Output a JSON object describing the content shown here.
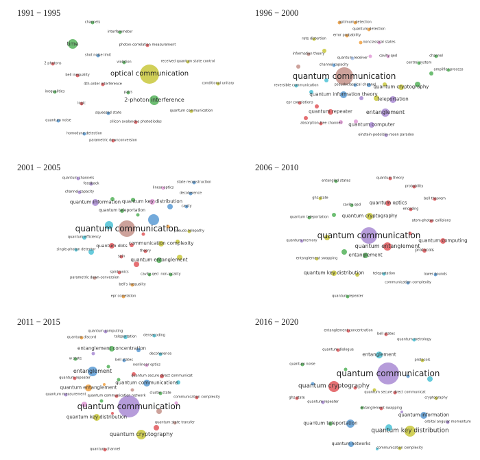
{
  "colors": {
    "red": "#e0575b",
    "green": "#55b35a",
    "blue": "#5b9bd5",
    "yellow": "#c9c83c",
    "purple": "#a98bd4",
    "brown": "#c4928a",
    "cyan": "#4cc2d6",
    "orange": "#f0a040",
    "pink": "#e09ad6",
    "lightblue": "#a9c6ee"
  },
  "panels": [
    {
      "title": "1991 − 1995",
      "nodes": [
        {
          "label": "channels",
          "color": "green"
        },
        {
          "label": "interferometer",
          "color": "green"
        },
        {
          "label": "time",
          "color": "green"
        },
        {
          "label": "photon-correlation measurement",
          "color": "red"
        },
        {
          "label": "shot noise limit",
          "color": "blue"
        },
        {
          "label": "violation",
          "color": "green"
        },
        {
          "label": "2 photons",
          "color": "red"
        },
        {
          "label": "received quantum state control",
          "color": "yellow"
        },
        {
          "label": "bell inequality",
          "color": "red"
        },
        {
          "label": "optical communication",
          "color": "yellow"
        },
        {
          "label": "4th-order interference",
          "color": "red"
        },
        {
          "label": "conditional unitary",
          "color": "yellow"
        },
        {
          "label": "inequalities",
          "color": "green"
        },
        {
          "label": "pairs",
          "color": "green"
        },
        {
          "label": "2-photon interference",
          "color": "green"
        },
        {
          "label": "logic",
          "color": "red"
        },
        {
          "label": "squeezed state",
          "color": "blue"
        },
        {
          "label": "quantum communication",
          "color": "yellow"
        },
        {
          "label": "quantum noise",
          "color": "blue"
        },
        {
          "label": "silicon avalanche photodiodes",
          "color": "red"
        },
        {
          "label": "homodyne detection",
          "color": "blue"
        },
        {
          "label": "parametric downconversion",
          "color": "red"
        }
      ]
    },
    {
      "title": "1996 − 2000",
      "nodes": [
        {
          "label": "optimum detection",
          "color": "orange"
        },
        {
          "label": "quantum detection",
          "color": "orange"
        },
        {
          "label": "error probability",
          "color": "orange"
        },
        {
          "label": "rate distortion",
          "color": "yellow"
        },
        {
          "label": "nonclassical states",
          "color": "pink"
        },
        {
          "label": "information theory",
          "color": "brown"
        },
        {
          "label": "quantum receiver",
          "color": "lightblue"
        },
        {
          "label": "cavity qed",
          "color": "pink"
        },
        {
          "label": "channel",
          "color": "green"
        },
        {
          "label": "control system",
          "color": "green"
        },
        {
          "label": "channel capacity",
          "color": "blue"
        },
        {
          "label": "amplifier process",
          "color": "green"
        },
        {
          "label": "quantum communication",
          "color": "brown"
        },
        {
          "label": "reversible communication",
          "color": "cyan"
        },
        {
          "label": "pseudoclassical channel",
          "color": "blue"
        },
        {
          "label": "quantum cryptography",
          "color": "yellow"
        },
        {
          "label": "quantum information theory",
          "color": "blue"
        },
        {
          "label": "teleportation",
          "color": "purple"
        },
        {
          "label": "epr correlations",
          "color": "red"
        },
        {
          "label": "quantum repeater",
          "color": "red"
        },
        {
          "label": "entanglement",
          "color": "purple"
        },
        {
          "label": "absorption-free channel",
          "color": "red"
        },
        {
          "label": "quantum computer",
          "color": "purple"
        },
        {
          "label": "einstein-podolsky-rosen paradox",
          "color": "purple"
        }
      ]
    },
    {
      "title": "2001 − 2005",
      "nodes": [
        {
          "label": "quantum channels",
          "color": "purple"
        },
        {
          "label": "feedback",
          "color": "purple"
        },
        {
          "label": "channel capacity",
          "color": "purple"
        },
        {
          "label": "state reconstruction",
          "color": "blue"
        },
        {
          "label": "linear optics",
          "color": "pink"
        },
        {
          "label": "decoherence",
          "color": "blue"
        },
        {
          "label": "quantum information",
          "color": "purple"
        },
        {
          "label": "quantum key distribution",
          "color": "pink"
        },
        {
          "label": "cavity",
          "color": "blue"
        },
        {
          "label": "quantum teleportation",
          "color": "green"
        },
        {
          "label": "quantum communication",
          "color": "brown"
        },
        {
          "label": "pseudo-telepathy",
          "color": "yellow"
        },
        {
          "label": "quantum efficiency",
          "color": "cyan"
        },
        {
          "label": "quantum dots",
          "color": "red"
        },
        {
          "label": "communication complexity",
          "color": "yellow"
        },
        {
          "label": "single-photon detector",
          "color": "cyan"
        },
        {
          "label": "theory",
          "color": "red"
        },
        {
          "label": "spin",
          "color": "red"
        },
        {
          "label": "quantum entanglement",
          "color": "green"
        },
        {
          "label": "spintronics",
          "color": "red"
        },
        {
          "label": "cavity qed",
          "color": "green"
        },
        {
          "label": "non-locality",
          "color": "green"
        },
        {
          "label": "parametric down-conversion",
          "color": "brown"
        },
        {
          "label": "bell's inequality",
          "color": "orange"
        },
        {
          "label": "epr correlation",
          "color": "orange"
        }
      ]
    },
    {
      "title": "2006 − 2010",
      "nodes": [
        {
          "label": "quantum theory",
          "color": "red"
        },
        {
          "label": "entangled states",
          "color": "green"
        },
        {
          "label": "probability",
          "color": "red"
        },
        {
          "label": "ghz state",
          "color": "yellow"
        },
        {
          "label": "bell theorem",
          "color": "red"
        },
        {
          "label": "quantum optics",
          "color": "red"
        },
        {
          "label": "cavity qed",
          "color": "green"
        },
        {
          "label": "encoding",
          "color": "red"
        },
        {
          "label": "quantum teleportation",
          "color": "green"
        },
        {
          "label": "quantum cryptography",
          "color": "yellow"
        },
        {
          "label": "atom-photon collisions",
          "color": "red"
        },
        {
          "label": "quantum communication",
          "color": "purple"
        },
        {
          "label": "quantum memory",
          "color": "purple"
        },
        {
          "label": "quantum computing",
          "color": "red"
        },
        {
          "label": "quantum entanglement",
          "color": "red"
        },
        {
          "label": "protocols",
          "color": "red"
        },
        {
          "label": "entanglement",
          "color": "green"
        },
        {
          "label": "entanglement swapping",
          "color": "yellow"
        },
        {
          "label": "quantum key distribution",
          "color": "yellow"
        },
        {
          "label": "teleportation",
          "color": "cyan"
        },
        {
          "label": "lower bounds",
          "color": "blue"
        },
        {
          "label": "communication complexity",
          "color": "blue"
        },
        {
          "label": "quantum repeater",
          "color": "green"
        }
      ]
    },
    {
      "title": "2011 − 2015",
      "nodes": [
        {
          "label": "quantum computing",
          "color": "purple"
        },
        {
          "label": "quantum discord",
          "color": "orange"
        },
        {
          "label": "teleportation",
          "color": "cyan"
        },
        {
          "label": "densecoding",
          "color": "cyan"
        },
        {
          "label": "entanglement concentration",
          "color": "green"
        },
        {
          "label": "decoherence",
          "color": "cyan"
        },
        {
          "label": "w state",
          "color": "green"
        },
        {
          "label": "bell states",
          "color": "blue"
        },
        {
          "label": "nonlinear optics",
          "color": "pink"
        },
        {
          "label": "entanglement",
          "color": "blue"
        },
        {
          "label": "quantum secure direct communicat",
          "color": "red"
        },
        {
          "label": "quantum repeater",
          "color": "red"
        },
        {
          "label": "quantum communications",
          "color": "blue"
        },
        {
          "label": "quantum entanglement",
          "color": "orange"
        },
        {
          "label": "cluster state",
          "color": "green"
        },
        {
          "label": "quantum measurement",
          "color": "purple"
        },
        {
          "label": "quantum communication network",
          "color": "red"
        },
        {
          "label": "communication complexity",
          "color": "red"
        },
        {
          "label": "quantum communication",
          "color": "purple"
        },
        {
          "label": "quantum key distribution",
          "color": "yellow"
        },
        {
          "label": "quantum state transfer",
          "color": "brown"
        },
        {
          "label": "quantum cryptography",
          "color": "yellow"
        },
        {
          "label": "quantum channel",
          "color": "red"
        }
      ]
    },
    {
      "title": "2016 − 2020",
      "nodes": [
        {
          "label": "entanglement concentration",
          "color": "red"
        },
        {
          "label": "bell states",
          "color": "red"
        },
        {
          "label": "quantum metrology",
          "color": "cyan"
        },
        {
          "label": "quantum dialogue",
          "color": "red"
        },
        {
          "label": "entanglement",
          "color": "cyan"
        },
        {
          "label": "protocols",
          "color": "yellow"
        },
        {
          "label": "quantum noise",
          "color": "green"
        },
        {
          "label": "quantum communication",
          "color": "purple"
        },
        {
          "label": "quantum cryptography",
          "color": "red"
        },
        {
          "label": "quantum secure direct communicat",
          "color": "red"
        },
        {
          "label": "ghz state",
          "color": "red"
        },
        {
          "label": "cryptography",
          "color": "yellow"
        },
        {
          "label": "quantum repeater",
          "color": "purple"
        },
        {
          "label": "entanglement swapping",
          "color": "red"
        },
        {
          "label": "quantum information",
          "color": "blue"
        },
        {
          "label": "orbital angular momentum",
          "color": "purple"
        },
        {
          "label": "quantum teleportation",
          "color": "green"
        },
        {
          "label": "quantum key distribution",
          "color": "yellow"
        },
        {
          "label": "quantum networks",
          "color": "blue"
        },
        {
          "label": "communication complexity",
          "color": "yellow"
        }
      ]
    }
  ]
}
